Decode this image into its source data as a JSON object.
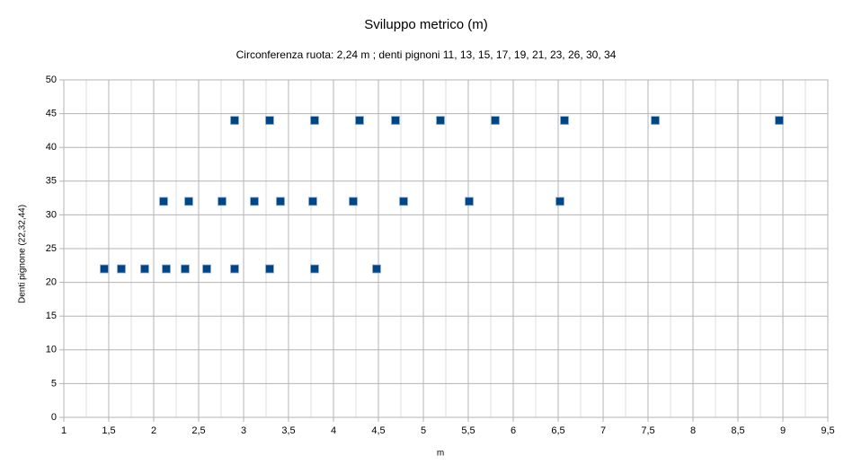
{
  "chart_data": {
    "type": "scatter",
    "title": "Sviluppo metrico (m)",
    "subtitle": "Circonferenza ruota: 2,24 m ; denti pignoni  11, 13, 15, 17, 19, 21, 23, 26, 30, 34",
    "x_label": "m",
    "y_label": "Denti pignone (22,32,44)",
    "x": [
      2.9,
      3.29,
      3.79,
      4.29,
      4.69,
      5.19,
      5.8,
      6.57,
      7.58,
      8.96,
      2.11,
      2.39,
      2.76,
      3.12,
      3.41,
      3.77,
      4.22,
      4.78,
      5.51,
      6.52,
      1.45,
      1.64,
      1.9,
      2.14,
      2.35,
      2.59,
      2.9,
      3.29,
      3.79,
      4.48
    ],
    "y": [
      44,
      44,
      44,
      44,
      44,
      44,
      44,
      44,
      44,
      44,
      32,
      32,
      32,
      32,
      32,
      32,
      32,
      32,
      32,
      32,
      22,
      22,
      22,
      22,
      22,
      22,
      22,
      22,
      22,
      22
    ],
    "color": "#004586",
    "xlim": [
      1,
      9.5
    ],
    "xticks": [
      1,
      {
        "value": 1.5,
        "label": "1,5"
      },
      2,
      {
        "value": 2.5,
        "label": "2,5"
      },
      3,
      {
        "value": 3.5,
        "label": "3,5"
      },
      4,
      {
        "value": 4.5,
        "label": "4,5"
      },
      5,
      {
        "value": 5.5,
        "label": "5,5"
      },
      6,
      {
        "value": 6.5,
        "label": "6,5"
      },
      7,
      {
        "value": 7.5,
        "label": "7,5"
      },
      8,
      {
        "value": 8.5,
        "label": "8,5"
      },
      9,
      {
        "value": 9.5,
        "label": "9,5"
      }
    ],
    "ylim": [
      0,
      50
    ],
    "yticks": [
      0,
      5,
      10,
      15,
      20,
      25,
      30,
      35,
      40,
      45,
      50
    ],
    "grid": true,
    "minor_grid": true
  }
}
